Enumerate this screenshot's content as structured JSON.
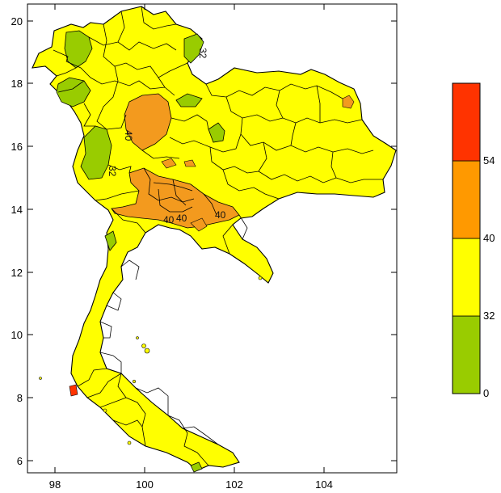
{
  "map": {
    "x_ticks": [
      "98",
      "100",
      "102",
      "104"
    ],
    "y_ticks": [
      "20",
      "18",
      "16",
      "14",
      "12",
      "10",
      "8",
      "6"
    ],
    "contour_labels": [
      "40",
      "40",
      "40",
      "40",
      "32",
      "32"
    ]
  },
  "colorbar": {
    "bins": [
      {
        "from": 0,
        "to": 32,
        "color": "#99cc00"
      },
      {
        "from": 32,
        "to": 40,
        "color": "#ffff00"
      },
      {
        "from": 40,
        "to": 54,
        "color": "#ff9900"
      },
      {
        "from": 54,
        "to": null,
        "color": "#ff3300"
      }
    ],
    "labels": [
      "54",
      "40",
      "32",
      "0"
    ]
  },
  "colors": {
    "land_base": "#ffff00",
    "low": "#99cc00",
    "high": "#f39a1e",
    "extreme": "#ff3300"
  }
}
